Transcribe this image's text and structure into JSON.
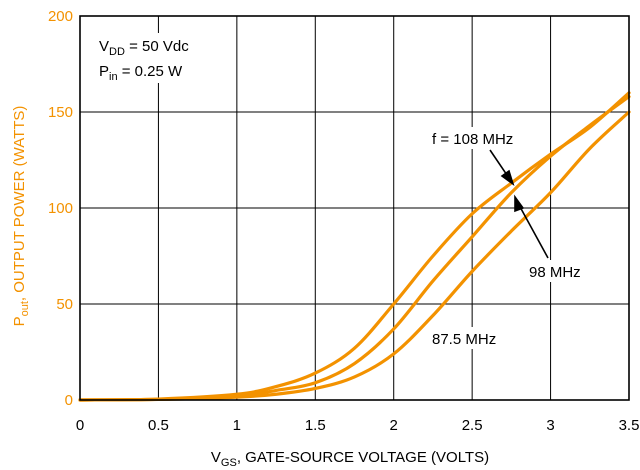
{
  "chart_data": {
    "type": "line",
    "title": "",
    "xlabel": {
      "main": "V",
      "sub": "GS",
      "rest": ", GATE-SOURCE VOLTAGE (VOLTS)"
    },
    "ylabel": {
      "main": "P",
      "sub": "out",
      "rest": ", OUTPUT POWER (WATTS)"
    },
    "xlim": [
      0,
      3.5
    ],
    "ylim": [
      0,
      200
    ],
    "x_ticks": [
      0,
      0.5,
      1,
      1.5,
      2,
      2.5,
      3,
      3.5
    ],
    "x_tick_labels": [
      "0",
      "0.5",
      "1",
      "1.5",
      "2",
      "2.5",
      "3",
      "3.5"
    ],
    "y_ticks": [
      0,
      50,
      100,
      150,
      200
    ],
    "y_tick_labels": [
      "0",
      "50",
      "100",
      "150",
      "200"
    ],
    "grid": true,
    "y_axis_color": "#f39200",
    "x_axis_color": "#000000",
    "line_color": "#f39200",
    "conditions": [
      {
        "main": "V",
        "sub": "DD",
        "rest": " = 50 Vdc"
      },
      {
        "main": "P",
        "sub": "in",
        "rest": " = 0.25 W"
      }
    ],
    "series": [
      {
        "name": "f = 108 MHz",
        "x": [
          0,
          0.5,
          1.0,
          1.25,
          1.5,
          1.75,
          2.0,
          2.25,
          2.5,
          2.75,
          3.0,
          3.25,
          3.5
        ],
        "y": [
          0,
          0.5,
          3,
          7,
          14,
          27,
          50,
          75,
          97,
          113,
          128,
          142,
          160
        ]
      },
      {
        "name": "98 MHz",
        "x": [
          0,
          0.5,
          1.0,
          1.25,
          1.5,
          1.75,
          2.0,
          2.25,
          2.5,
          2.75,
          3.0,
          3.25,
          3.5
        ],
        "y": [
          0,
          0.4,
          2,
          5,
          9,
          19,
          37,
          62,
          85,
          108,
          127,
          143,
          158
        ]
      },
      {
        "name": "87.5 MHz",
        "x": [
          0,
          0.5,
          1.0,
          1.25,
          1.5,
          1.75,
          2.0,
          2.25,
          2.5,
          2.75,
          3.0,
          3.25,
          3.5
        ],
        "y": [
          0,
          0.3,
          1.5,
          3,
          6,
          12,
          24,
          44,
          67,
          88,
          108,
          131,
          150
        ]
      }
    ]
  }
}
